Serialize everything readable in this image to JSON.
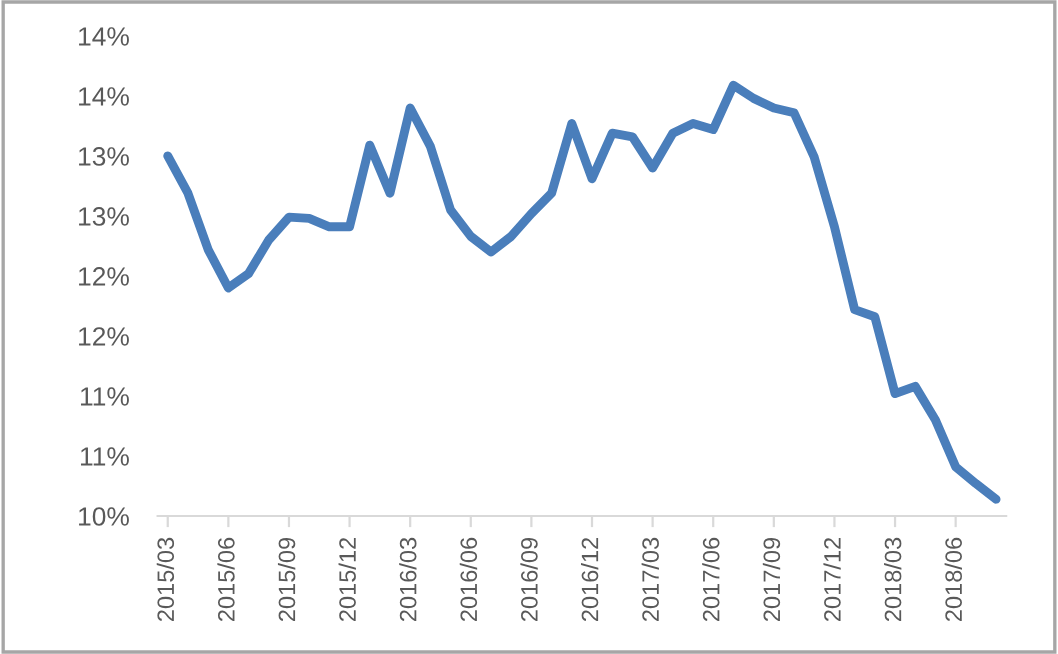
{
  "chart_data": {
    "type": "line",
    "categories": [
      "2015/03",
      null,
      null,
      "2015/06",
      null,
      null,
      "2015/09",
      null,
      null,
      "2015/12",
      null,
      null,
      "2016/03",
      null,
      null,
      "2016/06",
      null,
      null,
      "2016/09",
      null,
      null,
      "2016/12",
      null,
      null,
      "2017/03",
      null,
      null,
      "2017/06",
      null,
      null,
      "2017/09",
      null,
      null,
      "2017/12",
      null,
      null,
      "2018/03",
      null,
      null,
      "2018/06",
      null,
      null
    ],
    "series": [
      {
        "color": "#4a7ebb",
        "values": [
          13.0,
          12.69,
          12.22,
          11.9,
          12.02,
          12.3,
          12.49,
          12.48,
          12.41,
          12.41,
          13.09,
          12.69,
          13.4,
          13.08,
          12.55,
          12.33,
          12.2,
          12.33,
          12.52,
          12.69,
          13.27,
          12.81,
          13.19,
          13.16,
          12.9,
          13.19,
          13.27,
          13.22,
          13.59,
          13.48,
          13.4,
          13.36,
          12.99,
          12.41,
          11.72,
          11.66,
          11.02,
          11.08,
          10.8,
          10.41,
          10.27,
          10.14
        ]
      }
    ],
    "ylim": [
      10,
      14
    ],
    "yticks": [
      {
        "value": 10,
        "label": "10%"
      },
      {
        "value": 10.5,
        "label": "11%"
      },
      {
        "value": 11,
        "label": "11%"
      },
      {
        "value": 11.5,
        "label": "12%"
      },
      {
        "value": 12,
        "label": "12%"
      },
      {
        "value": 12.5,
        "label": "13%"
      },
      {
        "value": 13,
        "label": "13%"
      },
      {
        "value": 13.5,
        "label": "14%"
      },
      {
        "value": 14,
        "label": "14%"
      }
    ],
    "grid": false,
    "legend": false,
    "marker": "none",
    "line_style": "solid"
  }
}
